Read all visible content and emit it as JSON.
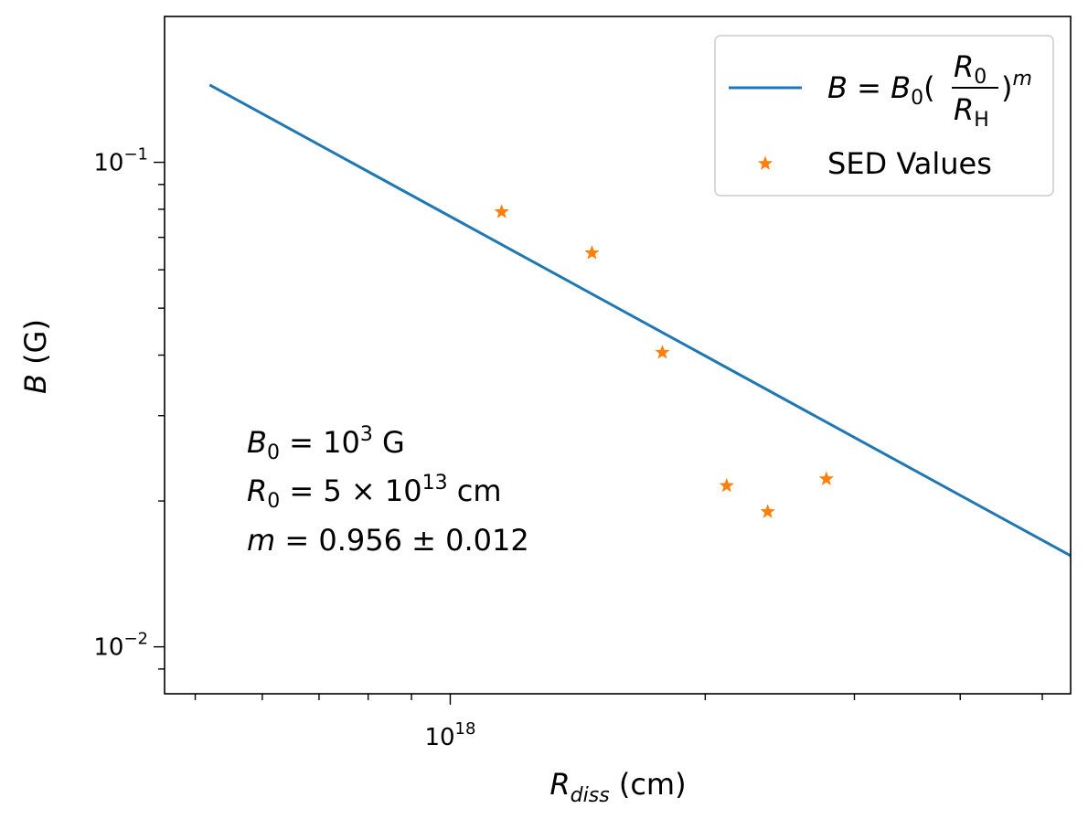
{
  "chart_data": {
    "type": "scatter",
    "xscale": "log",
    "yscale": "log",
    "xlim": [
      4.6e+17,
      5.4e+18
    ],
    "ylim": [
      0.008,
      0.2
    ],
    "xlabel": {
      "main": "R",
      "sub": "diss",
      "unit": " (cm)"
    },
    "ylabel": {
      "main": "B",
      "unit": " (G)"
    },
    "xticks_major": [
      {
        "value": 1e+18,
        "base": "10",
        "exp": "18"
      }
    ],
    "xticks_minor": [
      5e+17,
      6e+17,
      7e+17,
      8e+17,
      9e+17,
      2e+18,
      3e+18,
      4e+18,
      5e+18
    ],
    "yticks_major": [
      {
        "value": 0.1,
        "base": "10",
        "exp": "−1"
      },
      {
        "value": 0.01,
        "base": "10",
        "exp": "−2"
      }
    ],
    "yticks_minor": [
      0.009,
      0.02,
      0.03,
      0.04,
      0.05,
      0.06,
      0.07,
      0.08,
      0.09
    ],
    "fit_line": {
      "name": "B = B0(R0/RH)^m",
      "color": "#1f77b4",
      "B0": 1000,
      "R0": 50000000000000.0,
      "m": 0.956,
      "x_range": [
        5.2e+17,
        5.4e+18
      ]
    },
    "series": [
      {
        "name": "SED Values",
        "color": "#ff7f0e",
        "marker": "star",
        "x": [
          1.15e+18,
          1.47e+18,
          1.78e+18,
          2.12e+18,
          2.37e+18,
          2.78e+18
        ],
        "y": [
          0.079,
          0.065,
          0.0405,
          0.0215,
          0.019,
          0.0222
        ]
      }
    ],
    "legend": {
      "placement": "top-right",
      "line_label": {
        "lhs": "B",
        "eq": " = ",
        "b0": "B",
        "b0_sub": "0",
        "num": "R",
        "num_sub": "0",
        "den": "R",
        "den_sub": "H",
        "exp": "m"
      },
      "marker_label": "SED Values"
    },
    "annotation": {
      "line1": {
        "var": "B",
        "sub": "0",
        "eq": " = 10",
        "exp": "3",
        "unit": " G"
      },
      "line2": {
        "var": "R",
        "sub": "0",
        "eq": " = 5 × 10",
        "exp": "13",
        "unit": " cm"
      },
      "line3": {
        "var": "m",
        "eq": " = 0.956 ± 0.012"
      }
    }
  }
}
